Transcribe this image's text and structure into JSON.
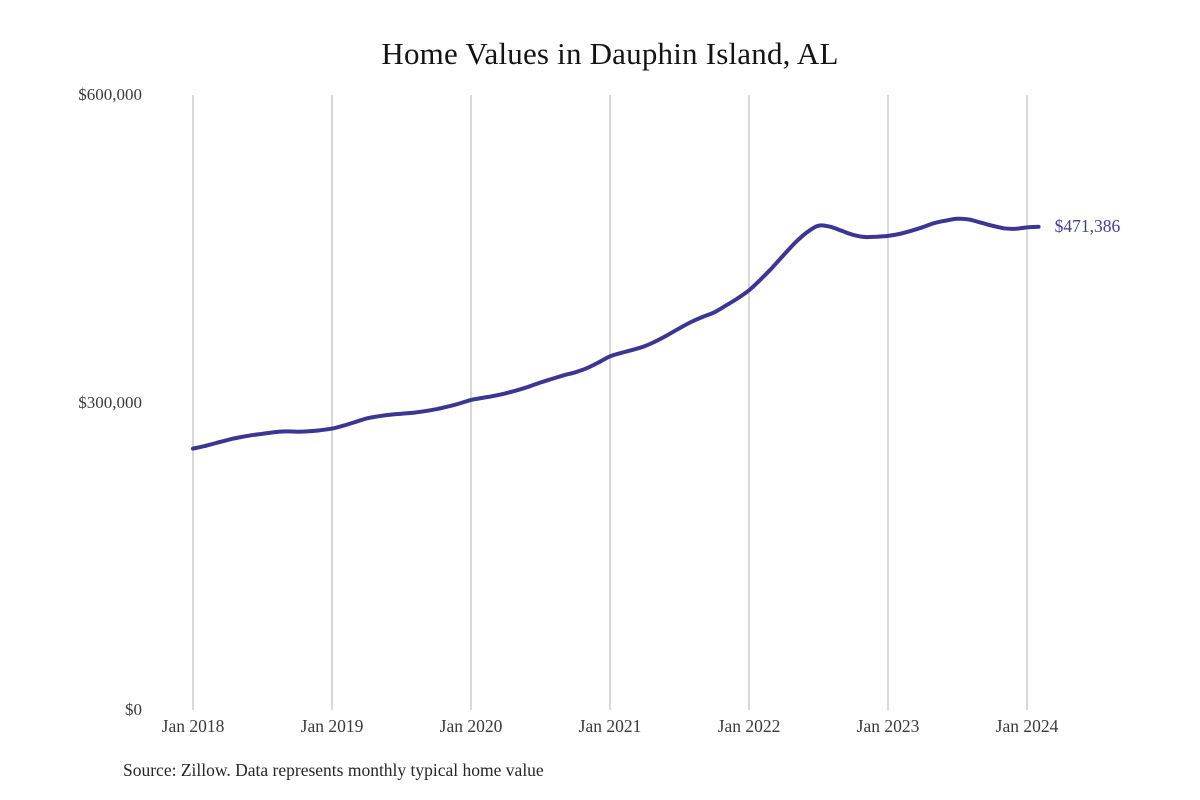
{
  "chart_data": {
    "type": "line",
    "title": "Home Values in Dauphin Island, AL",
    "xlabel": "",
    "ylabel": "",
    "ylim": [
      0,
      600000
    ],
    "grid": "vertical-only",
    "grid_color": "#cbcbcb",
    "line_color": "#3a3692",
    "end_label": "$471,386",
    "end_label_color": "#403f99",
    "y_ticks": [
      {
        "label": "$600,000",
        "value": 600000
      },
      {
        "label": "$300,000",
        "value": 300000
      },
      {
        "label": "$0",
        "value": 0
      }
    ],
    "x_ticks": [
      "Jan 2018",
      "Jan 2019",
      "Jan 2020",
      "Jan 2021",
      "Jan 2022",
      "Jan 2023",
      "Jan 2024"
    ],
    "series": [
      {
        "name": "Monthly typical home value",
        "start": "Jan 2018",
        "interval": "monthly",
        "values": [
          255000,
          257500,
          260500,
          263500,
          266000,
          268000,
          269500,
          271000,
          271800,
          271500,
          272000,
          273000,
          274500,
          277500,
          281000,
          284500,
          286500,
          288000,
          289000,
          290000,
          291500,
          293500,
          296000,
          299000,
          302500,
          304500,
          306500,
          309000,
          312000,
          315500,
          319500,
          323000,
          326500,
          329500,
          333500,
          339000,
          345000,
          348500,
          351500,
          355000,
          360000,
          366000,
          372500,
          378500,
          383500,
          388000,
          394500,
          401500,
          409500,
          420000,
          431500,
          444000,
          456000,
          466000,
          472500,
          471500,
          467500,
          463500,
          461500,
          461800,
          462500,
          464500,
          467500,
          471000,
          475000,
          477500,
          479200,
          478500,
          475500,
          472500,
          470000,
          469500,
          470800,
          471386
        ]
      }
    ]
  },
  "footer": {
    "source": "Source: Zillow. Data represents monthly typical home value"
  }
}
